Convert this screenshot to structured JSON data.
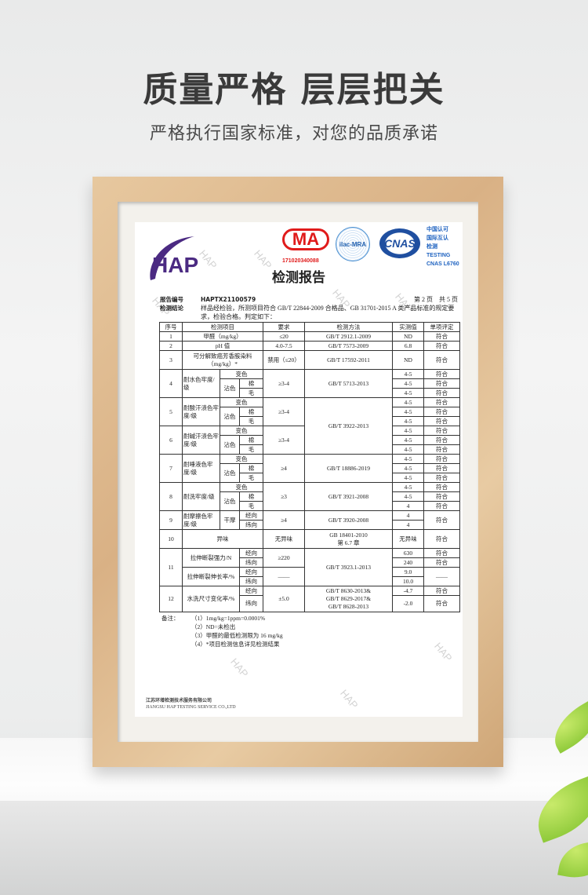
{
  "header": {
    "title": "质量严格  层层把关",
    "subtitle": "严格执行国家标准，对您的品质承诺"
  },
  "report": {
    "logos": {
      "hap": "HAP",
      "cma": "MA",
      "cma_number": "171020340088",
      "ilac": "ilac-MRA",
      "cnas": "CNAS",
      "cnas_lines": [
        "中国认可",
        "国际互认",
        "检测",
        "TESTING",
        "CNAS L6760"
      ]
    },
    "watermark": "HAP",
    "title": "检测报告",
    "report_no_label": "报告编号",
    "report_no": "HAPTX21100579",
    "page": "第 2 页　共 5 页",
    "conclusion_label": "检测结论",
    "conclusion": "样品经检验，所测项目符合 GB/T 22844-2009 合格品、GB 31701-2015 A 类产品标准的规定要求，检验合格。判定如下：",
    "colors": {
      "hap": "#4b2a82",
      "cma": "#e01b1b",
      "cnas": "#1f4fa0"
    },
    "table": {
      "headers": [
        "序号",
        "检测项目",
        "要求",
        "检测方法",
        "实测值",
        "单项评定"
      ],
      "rows": [
        {
          "no": "1",
          "item": "甲醛（mg/kg）",
          "req": "≤20",
          "method": "GB/T 2912.1-2009",
          "values": [
            "ND"
          ],
          "results": [
            "符合"
          ]
        },
        {
          "no": "2",
          "item": "pH 值",
          "req": "4.0-7.5",
          "method": "GB/T 7573-2009",
          "values": [
            "6.8"
          ],
          "results": [
            "符合"
          ]
        },
        {
          "no": "3",
          "item": "可分解致癌芳香胺染料（mg/kg）*",
          "req": "禁用（≤20）",
          "method": "GB/T 17592-2011",
          "values": [
            "ND"
          ],
          "results": [
            "符合"
          ]
        },
        {
          "no": "4",
          "item": "耐水色牢度/级",
          "sub": [
            "变色",
            "沾色",
            "棉",
            "毛"
          ],
          "req": "≥3-4",
          "method": "GB/T 5713-2013",
          "values": [
            "4-5",
            "4-5",
            "4-5"
          ],
          "results": [
            "符合",
            "符合",
            "符合"
          ]
        },
        {
          "no": "5",
          "item": "耐酸汗渍色牢度/级",
          "sub": [
            "变色",
            "沾色",
            "棉",
            "毛"
          ],
          "req": "≥3-4",
          "method": "GB/T 3922-2013",
          "values": [
            "4-5",
            "4-5",
            "4-5"
          ],
          "results": [
            "符合",
            "符合",
            "符合"
          ]
        },
        {
          "no": "6",
          "item": "耐碱汗渍色牢度/级",
          "sub": [
            "变色",
            "沾色",
            "棉",
            "毛"
          ],
          "req": "≥3-4",
          "values": [
            "4-5",
            "4-5",
            "4-5"
          ],
          "results": [
            "符合",
            "符合",
            "符合"
          ]
        },
        {
          "no": "7",
          "item": "耐唾液色牢度/级",
          "sub": [
            "变色",
            "沾色",
            "棉",
            "毛"
          ],
          "req": "≥4",
          "method": "GB/T 18886-2019",
          "values": [
            "4-5",
            "4-5",
            "4-5"
          ],
          "results": [
            "符合",
            "符合",
            "符合"
          ]
        },
        {
          "no": "8",
          "item": "耐洗牢度/级",
          "sub": [
            "变色",
            "沾色",
            "棉",
            "毛"
          ],
          "req": "≥3",
          "method": "GB/T 3921-2008",
          "values": [
            "4-5",
            "4-5",
            "4"
          ],
          "results": [
            "符合",
            "符合",
            "符合"
          ]
        },
        {
          "no": "9",
          "item": "耐摩擦色牢度/级",
          "sub": [
            "干摩",
            "经向",
            "纬向"
          ],
          "req": "≥4",
          "method": "GB/T 3920-2008",
          "values": [
            "4",
            "4"
          ],
          "results": [
            "符合"
          ]
        },
        {
          "no": "10",
          "item": "异味",
          "req": "无异味",
          "method": "GB 18401-2010 第 6.7 章",
          "values": [
            "无异味"
          ],
          "results": [
            "符合"
          ]
        },
        {
          "no": "11",
          "items": [
            "拉伸断裂强力/N",
            "拉伸断裂伸长率/%"
          ],
          "sub": [
            "经向",
            "纬向",
            "经向",
            "纬向"
          ],
          "reqs": [
            "≥220",
            "——"
          ],
          "method": "GB/T 3923.1-2013",
          "values": [
            "630",
            "240",
            "9.0",
            "10.0"
          ],
          "results": [
            "符合",
            "符合",
            "——"
          ]
        },
        {
          "no": "12",
          "item": "水洗尺寸变化率/%",
          "sub": [
            "经向",
            "纬向"
          ],
          "req": "±5.0",
          "method": "GB/T 8630-2013& GB/T 8629-2017& GB/T 8628-2013",
          "values": [
            "-4.7",
            "-2.0"
          ],
          "results": [
            "符合",
            "符合"
          ]
        }
      ]
    },
    "notes": {
      "label": "备注：",
      "items": [
        "（1）1mg/kg=1ppm=0.0001%",
        "（2）ND=未检出",
        "（3）甲醛的最低检测限为 16 mg/kg",
        "（4）*项目检测信息详见检测结果"
      ]
    },
    "footer": {
      "cn": "江苏环增检测技术服务有限公司",
      "en": "JIANGSU HAP TESTING SERVICE CO.,LTD"
    }
  }
}
